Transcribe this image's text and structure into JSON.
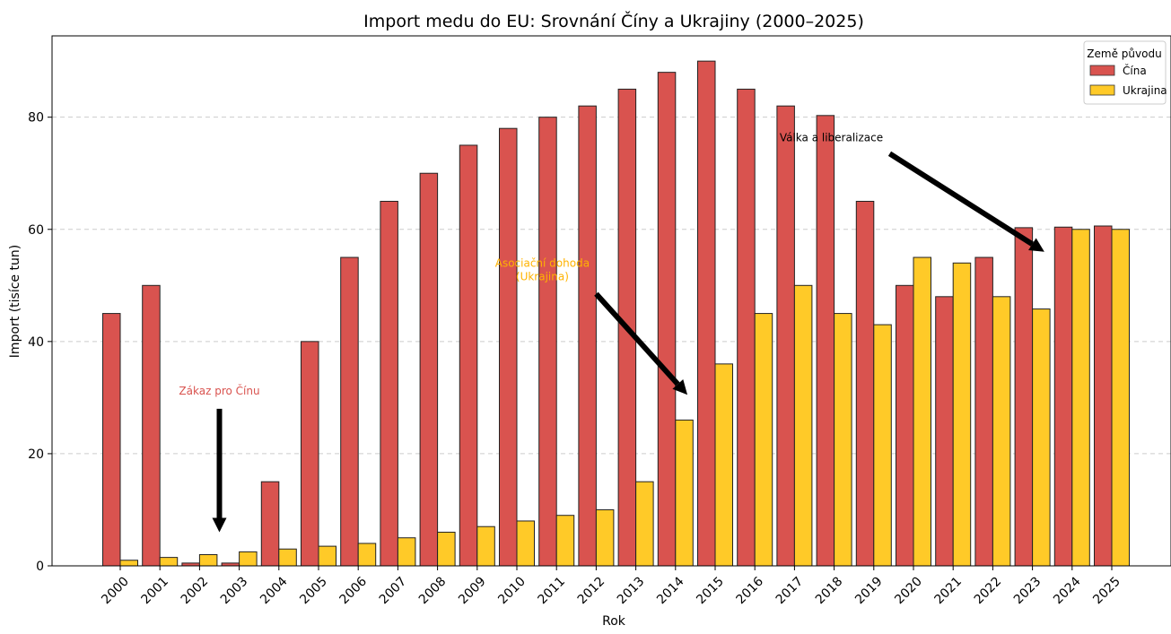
{
  "chart_data": {
    "type": "bar",
    "title": "Import medu do EU: Srovnání Číny a Ukrajiny (2000–2025)",
    "xlabel": "Rok",
    "ylabel": "Import (tisíce tun)",
    "ylim": [
      0,
      94.5
    ],
    "yticks": [
      0,
      20,
      40,
      60,
      80
    ],
    "grid": "horizontal dashed",
    "categories": [
      "2000",
      "2001",
      "2002",
      "2003",
      "2004",
      "2005",
      "2006",
      "2007",
      "2008",
      "2009",
      "2010",
      "2011",
      "2012",
      "2013",
      "2014",
      "2015",
      "2016",
      "2017",
      "2018",
      "2019",
      "2020",
      "2021",
      "2022",
      "2023",
      "2024",
      "2025"
    ],
    "series": [
      {
        "name": "Čína",
        "color": "#d9534f",
        "values": [
          45,
          50,
          0.5,
          0.5,
          15,
          40,
          55,
          65,
          70,
          75,
          78,
          80,
          82,
          85,
          88,
          90,
          85,
          82,
          80.3,
          65,
          50,
          48,
          55,
          60.3,
          60.4,
          60.6
        ]
      },
      {
        "name": "Ukrajina",
        "color": "#ffca28",
        "values": [
          1,
          1.5,
          2,
          2.5,
          3,
          3.5,
          4,
          5,
          6,
          7,
          8,
          9,
          10,
          15,
          26,
          36,
          45,
          50,
          45,
          43,
          55,
          54,
          48,
          45.8,
          60,
          60
        ]
      }
    ],
    "legend": {
      "title": "Země původu",
      "placement": "top-right"
    },
    "annotations": [
      {
        "text": "Zákaz pro Čínu",
        "color": "#d9534f",
        "arrow_from": [
          2002.5,
          28
        ],
        "arrow_to": [
          2002.5,
          6
        ]
      },
      {
        "text": "Asociační dohoda\n(Ukrajina)",
        "color": "#ffb300",
        "arrow_from": [
          2012,
          48.5
        ],
        "arrow_to": [
          2014.3,
          30.5
        ]
      },
      {
        "text": "Válka a liberalizace",
        "color": "#000000",
        "arrow_from": [
          2019.4,
          73.5
        ],
        "arrow_to": [
          2023.3,
          56
        ]
      }
    ]
  }
}
